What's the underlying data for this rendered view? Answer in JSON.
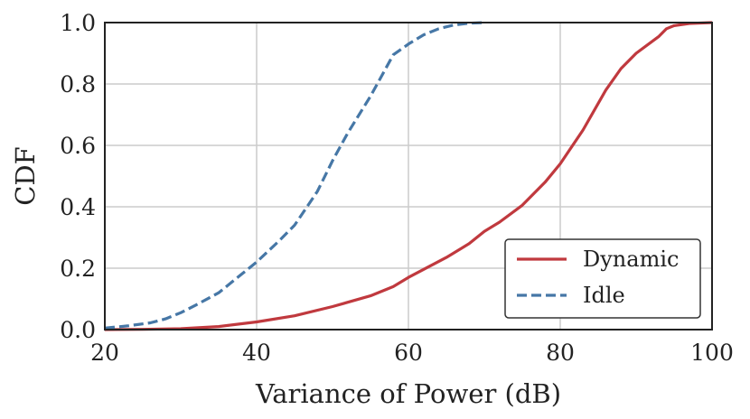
{
  "chart_data": {
    "type": "line",
    "xlabel": "Variance of Power (dB)",
    "ylabel": "CDF",
    "xlim": [
      20,
      100
    ],
    "ylim": [
      0.0,
      1.0
    ],
    "xticks": [
      20,
      40,
      60,
      80,
      100
    ],
    "xtick_labels": [
      "20",
      "40",
      "60",
      "80",
      "100"
    ],
    "yticks": [
      0.0,
      0.2,
      0.4,
      0.6,
      0.8,
      1.0
    ],
    "ytick_labels": [
      "0.0",
      "0.2",
      "0.4",
      "0.6",
      "0.8",
      "1.0"
    ],
    "grid": true,
    "legend_position": "bottom-right",
    "series": [
      {
        "name": "Dynamic",
        "color": "#c0393e",
        "style": "solid",
        "x": [
          20,
          25,
          30,
          35,
          40,
          45,
          50,
          55,
          58,
          60,
          65,
          68,
          70,
          72,
          75,
          78,
          80,
          83,
          86,
          88,
          90,
          93,
          94,
          95,
          97,
          100
        ],
        "y": [
          0.0,
          0.001,
          0.003,
          0.01,
          0.025,
          0.045,
          0.075,
          0.11,
          0.14,
          0.17,
          0.235,
          0.28,
          0.32,
          0.35,
          0.405,
          0.48,
          0.54,
          0.65,
          0.78,
          0.85,
          0.9,
          0.955,
          0.98,
          0.99,
          0.997,
          1.0
        ]
      },
      {
        "name": "Idle",
        "color": "#4677a6",
        "style": "dashed",
        "x": [
          20,
          23,
          26,
          28,
          30,
          32,
          35,
          38,
          40,
          43,
          45,
          48,
          50,
          52,
          55,
          57,
          58,
          60,
          62,
          64,
          66,
          68,
          70
        ],
        "y": [
          0.005,
          0.012,
          0.022,
          0.035,
          0.055,
          0.08,
          0.12,
          0.18,
          0.22,
          0.29,
          0.34,
          0.45,
          0.55,
          0.64,
          0.76,
          0.85,
          0.895,
          0.93,
          0.96,
          0.98,
          0.992,
          0.998,
          1.0
        ]
      }
    ]
  }
}
